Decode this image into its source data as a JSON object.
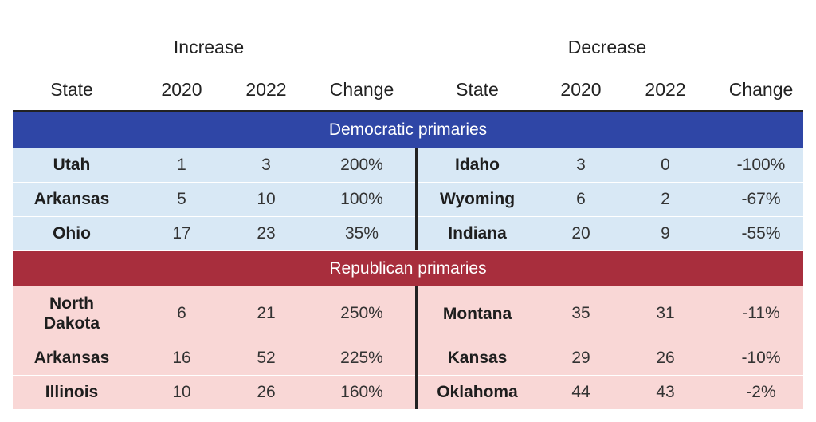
{
  "headers": {
    "increase": "Increase",
    "decrease": "Decrease",
    "state": "State",
    "y2020": "2020",
    "y2022": "2022",
    "change": "Change"
  },
  "sections": [
    {
      "id": "dem",
      "title": "Democratic primaries",
      "color": "#2f46a6",
      "bg": "#d8e8f5",
      "rows": [
        {
          "inc": {
            "state": "Utah",
            "v2020": "1",
            "v2022": "3",
            "change": "200%"
          },
          "dec": {
            "state": "Idaho",
            "v2020": "3",
            "v2022": "0",
            "change": "-100%"
          }
        },
        {
          "inc": {
            "state": "Arkansas",
            "v2020": "5",
            "v2022": "10",
            "change": "100%"
          },
          "dec": {
            "state": "Wyoming",
            "v2020": "6",
            "v2022": "2",
            "change": "-67%"
          }
        },
        {
          "inc": {
            "state": "Ohio",
            "v2020": "17",
            "v2022": "23",
            "change": "35%"
          },
          "dec": {
            "state": "Indiana",
            "v2020": "20",
            "v2022": "9",
            "change": "-55%"
          }
        }
      ]
    },
    {
      "id": "rep",
      "title": "Republican primaries",
      "color": "#a82e3d",
      "bg": "#f9d7d6",
      "rows": [
        {
          "inc": {
            "state": "North Dakota",
            "v2020": "6",
            "v2022": "21",
            "change": "250%"
          },
          "dec": {
            "state": "Montana",
            "v2020": "35",
            "v2022": "31",
            "change": "-11%"
          }
        },
        {
          "inc": {
            "state": "Arkansas",
            "v2020": "16",
            "v2022": "52",
            "change": "225%"
          },
          "dec": {
            "state": "Kansas",
            "v2020": "29",
            "v2022": "26",
            "change": "-10%"
          }
        },
        {
          "inc": {
            "state": "Illinois",
            "v2020": "10",
            "v2022": "26",
            "change": "160%"
          },
          "dec": {
            "state": "Oklahoma",
            "v2020": "44",
            "v2022": "43",
            "change": "-2%"
          }
        }
      ]
    }
  ]
}
